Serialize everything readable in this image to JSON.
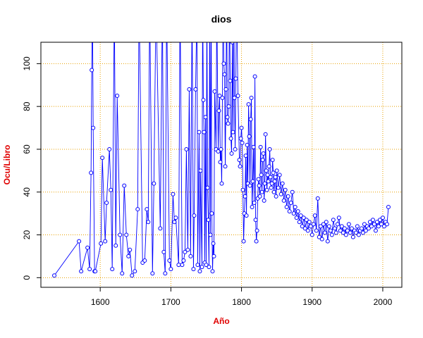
{
  "chart_data": {
    "type": "line",
    "title": "dios",
    "x_label": "Año",
    "y_label": "Ocu/Libro",
    "color": "#0000ff",
    "grid": true,
    "grid_color": "#e8a000",
    "xlim": [
      1516,
      2027
    ],
    "ylim": [
      -4.5,
      110
    ],
    "xticks": [
      1600,
      1700,
      1800,
      1900,
      2000
    ],
    "yticks": [
      0,
      20,
      40,
      60,
      80,
      100
    ],
    "x": [
      1535,
      1570,
      1573,
      1582,
      1585,
      1587,
      1588,
      1589,
      1590,
      1592,
      1593,
      1601,
      1603,
      1607,
      1609,
      1613,
      1615,
      1617,
      1620,
      1622,
      1624,
      1628,
      1631,
      1634,
      1637,
      1640,
      1642,
      1645,
      1649,
      1653,
      1655,
      1660,
      1663,
      1666,
      1668,
      1670,
      1674,
      1676,
      1679,
      1685,
      1688,
      1690,
      1692,
      1694,
      1698,
      1700,
      1703,
      1705,
      1707,
      1711,
      1713,
      1716,
      1718,
      1720,
      1722,
      1724,
      1726,
      1728,
      1730,
      1732,
      1733,
      1735,
      1737,
      1738,
      1740,
      1741,
      1742,
      1744,
      1745,
      1746,
      1747,
      1748,
      1749,
      1750,
      1751,
      1752,
      1753,
      1754,
      1755,
      1756,
      1757,
      1758,
      1759,
      1760,
      1761,
      1762,
      1764,
      1765,
      1767,
      1768,
      1769,
      1770,
      1771,
      1772,
      1773,
      1774,
      1775,
      1776,
      1777,
      1778,
      1779,
      1780,
      1781,
      1782,
      1783,
      1784,
      1785,
      1786,
      1787,
      1788,
      1789,
      1790,
      1791,
      1792,
      1793,
      1795,
      1797,
      1798,
      1799,
      1800,
      1801,
      1802,
      1803,
      1804,
      1805,
      1806,
      1807,
      1808,
      1809,
      1810,
      1811,
      1812,
      1813,
      1814,
      1815,
      1816,
      1817,
      1818,
      1819,
      1820,
      1821,
      1822,
      1823,
      1824,
      1825,
      1826,
      1827,
      1828,
      1829,
      1830,
      1831,
      1832,
      1833,
      1834,
      1835,
      1836,
      1837,
      1838,
      1839,
      1840,
      1841,
      1842,
      1843,
      1844,
      1845,
      1846,
      1847,
      1848,
      1849,
      1850,
      1852,
      1854,
      1856,
      1858,
      1860,
      1862,
      1864,
      1866,
      1868,
      1870,
      1872,
      1874,
      1876,
      1878,
      1880,
      1882,
      1884,
      1886,
      1888,
      1890,
      1892,
      1894,
      1896,
      1898,
      1900,
      1902,
      1904,
      1906,
      1908,
      1910,
      1912,
      1914,
      1916,
      1918,
      1920,
      1922,
      1924,
      1926,
      1928,
      1930,
      1932,
      1934,
      1936,
      1938,
      1940,
      1942,
      1944,
      1946,
      1948,
      1950,
      1952,
      1954,
      1956,
      1958,
      1960,
      1962,
      1964,
      1966,
      1968,
      1970,
      1972,
      1974,
      1976,
      1978,
      1980,
      1982,
      1984,
      1986,
      1988,
      1990,
      1992,
      1994,
      1996,
      1998,
      2000,
      2002,
      2004,
      2006,
      2008
    ],
    "values": [
      1,
      17,
      3,
      14,
      4,
      49,
      97,
      130,
      70,
      3,
      3,
      16,
      56,
      17,
      35,
      60,
      41,
      4,
      130,
      15,
      85,
      20,
      2,
      43,
      20,
      10,
      13,
      1,
      3,
      32,
      130,
      7,
      8,
      32,
      26,
      130,
      2,
      44,
      130,
      23,
      130,
      12,
      2,
      130,
      8,
      4,
      39,
      26,
      28,
      6,
      130,
      6,
      8,
      12,
      60,
      13,
      88,
      10,
      130,
      4,
      29,
      88,
      130,
      6,
      68,
      3,
      50,
      5,
      130,
      83,
      68,
      7,
      75,
      6,
      130,
      42,
      27,
      5,
      130,
      20,
      130,
      30,
      3,
      16,
      10,
      87,
      60,
      130,
      59,
      78,
      85,
      54,
      60,
      44,
      84,
      130,
      100,
      95,
      52,
      88,
      130,
      75,
      72,
      80,
      130,
      92,
      65,
      58,
      110,
      68,
      130,
      84,
      60,
      93,
      130,
      85,
      55,
      52,
      65,
      70,
      63,
      41,
      17,
      30,
      38,
      57,
      29,
      62,
      44,
      81,
      66,
      43,
      74,
      84,
      33,
      45,
      61,
      35,
      94,
      27,
      17,
      22,
      37,
      46,
      43,
      38,
      61,
      48,
      40,
      55,
      58,
      36,
      44,
      67,
      50,
      41,
      48,
      45,
      52,
      60,
      47,
      42,
      44,
      55,
      49,
      40,
      45,
      47,
      38,
      50,
      42,
      48,
      39,
      44,
      36,
      41,
      33,
      38,
      31,
      35,
      40,
      30,
      33,
      28,
      31,
      26,
      29,
      24,
      28,
      23,
      27,
      22,
      26,
      24,
      20,
      25,
      29,
      22,
      37,
      19,
      24,
      18,
      25,
      21,
      26,
      17,
      24,
      22,
      20,
      27,
      23,
      21,
      25,
      28,
      22,
      24,
      21,
      23,
      20,
      22,
      25,
      21,
      23,
      19,
      22,
      21,
      24,
      20,
      22,
      23,
      21,
      25,
      22,
      24,
      23,
      26,
      24,
      27,
      25,
      22,
      26,
      24,
      27,
      25,
      28,
      24,
      26,
      25,
      33
    ]
  }
}
